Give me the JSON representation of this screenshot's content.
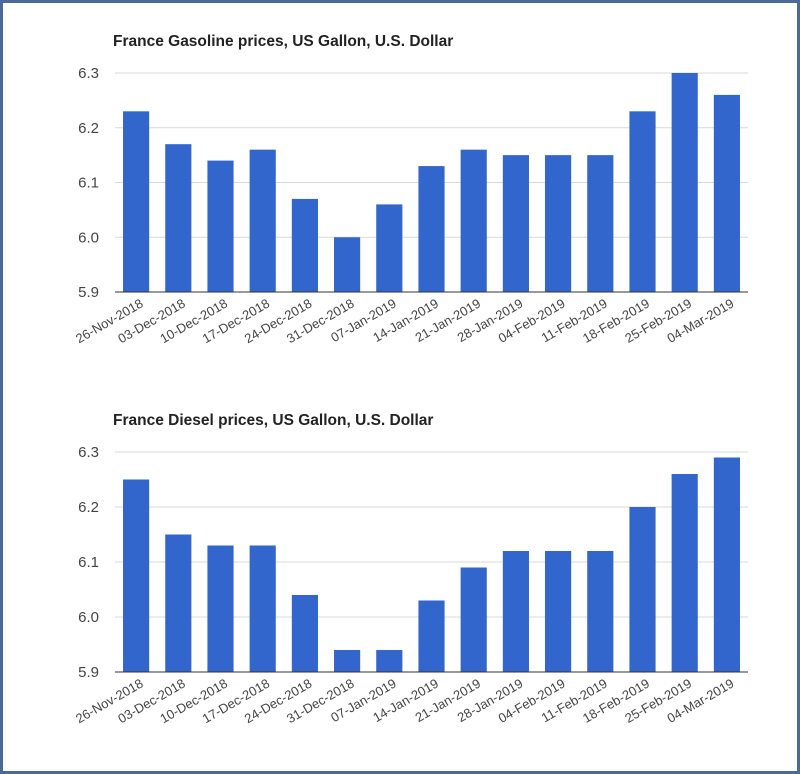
{
  "chart_data": [
    {
      "type": "bar",
      "title": "France Gasoline prices, US Gallon, U.S. Dollar",
      "xlabel": "",
      "ylabel": "",
      "ylim": [
        5.9,
        6.3
      ],
      "yticks": [
        "6.3",
        "6.2",
        "6.1",
        "6.0",
        "5.9"
      ],
      "ytick_values": [
        6.3,
        6.2,
        6.1,
        6.0,
        5.9
      ],
      "categories": [
        "26-Nov-2018",
        "03-Dec-2018",
        "10-Dec-2018",
        "17-Dec-2018",
        "24-Dec-2018",
        "31-Dec-2018",
        "07-Jan-2019",
        "14-Jan-2019",
        "21-Jan-2019",
        "28-Jan-2019",
        "04-Feb-2019",
        "11-Feb-2019",
        "18-Feb-2019",
        "25-Feb-2019",
        "04-Mar-2019"
      ],
      "values": [
        6.23,
        6.17,
        6.14,
        6.16,
        6.07,
        6.0,
        6.06,
        6.13,
        6.16,
        6.15,
        6.15,
        6.15,
        6.23,
        6.3,
        6.26
      ],
      "color": "#3366cc",
      "grid": true
    },
    {
      "type": "bar",
      "title": "France Diesel prices, US Gallon, U.S. Dollar",
      "xlabel": "",
      "ylabel": "",
      "ylim": [
        5.9,
        6.3
      ],
      "yticks": [
        "6.3",
        "6.2",
        "6.1",
        "6.0",
        "5.9"
      ],
      "ytick_values": [
        6.3,
        6.2,
        6.1,
        6.0,
        5.9
      ],
      "categories": [
        "26-Nov-2018",
        "03-Dec-2018",
        "10-Dec-2018",
        "17-Dec-2018",
        "24-Dec-2018",
        "31-Dec-2018",
        "07-Jan-2019",
        "14-Jan-2019",
        "21-Jan-2019",
        "28-Jan-2019",
        "04-Feb-2019",
        "11-Feb-2019",
        "18-Feb-2019",
        "25-Feb-2019",
        "04-Mar-2019"
      ],
      "values": [
        6.25,
        6.15,
        6.13,
        6.13,
        6.04,
        5.94,
        5.94,
        6.03,
        6.09,
        6.12,
        6.12,
        6.12,
        6.2,
        6.26,
        6.29
      ],
      "color": "#3366cc",
      "grid": true
    }
  ]
}
